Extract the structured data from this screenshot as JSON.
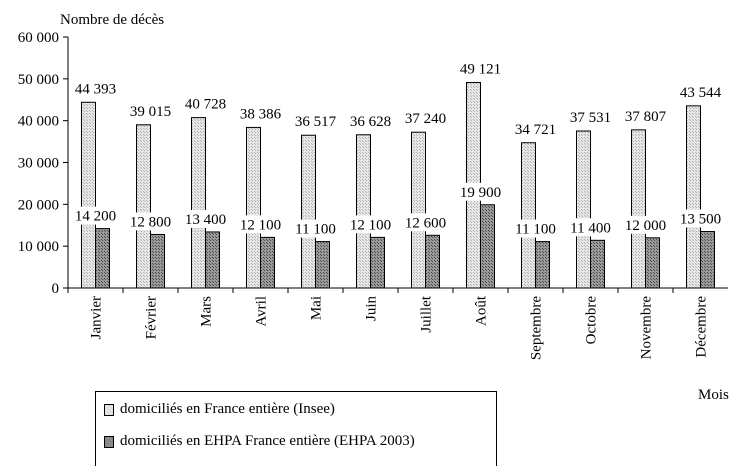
{
  "chart_data": {
    "type": "bar",
    "ylabel": "Nombre de décès",
    "xlabel": "Mois",
    "ylim": [
      0,
      60000
    ],
    "yticks": [
      0,
      10000,
      20000,
      30000,
      40000,
      50000,
      60000
    ],
    "ytick_labels": [
      "0",
      "10 000",
      "20 000",
      "30 000",
      "40 000",
      "50 000",
      "60 000"
    ],
    "categories": [
      "Janvier",
      "Février",
      "Mars",
      "Avril",
      "Mai",
      "Juin",
      "Juillet",
      "Août",
      "Septembre",
      "Octobre",
      "Novembre",
      "Décembre"
    ],
    "series": [
      {
        "name": "domiciliés en France entière (Insee)",
        "values": [
          44393,
          39015,
          40728,
          38386,
          36517,
          36628,
          37240,
          49121,
          34721,
          37531,
          37807,
          43544
        ],
        "labels": [
          "44 393",
          "39 015",
          "40 728",
          "38 386",
          "36 517",
          "36 628",
          "37 240",
          "49 121",
          "34 721",
          "37 531",
          "37 807",
          "43 544"
        ],
        "color": "#e2e2e2"
      },
      {
        "name": "domiciliés en EHPA France entière (EHPA 2003)",
        "values": [
          14200,
          12800,
          13400,
          12100,
          11100,
          12100,
          12600,
          19900,
          11100,
          11400,
          12000,
          13500
        ],
        "labels": [
          "14 200",
          "12 800",
          "13 400",
          "12 100",
          "11 100",
          "12 100",
          "12 600",
          "19 900",
          "11 100",
          "11 400",
          "12 000",
          "13 500"
        ],
        "color": "#8a8a8a"
      }
    ],
    "legend_position": "bottom-left",
    "grid": false
  }
}
